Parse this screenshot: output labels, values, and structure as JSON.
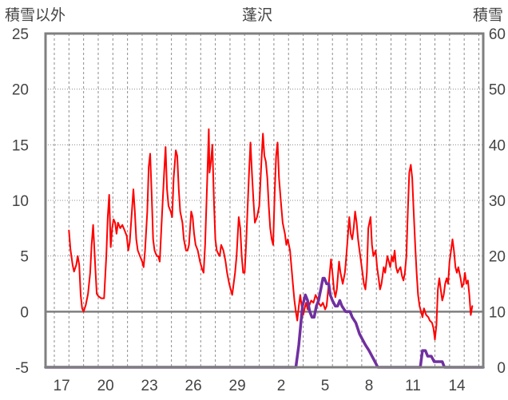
{
  "chart_data": {
    "type": "line",
    "title": "蓬沢",
    "left_axis_label": "積雪以外",
    "right_axis_label": "積雪",
    "ylim_left": [
      -5,
      25
    ],
    "ylim_right": [
      0,
      60
    ],
    "y_ticks_left": [
      "25",
      "20",
      "15",
      "10",
      "5",
      "0",
      "-5"
    ],
    "y_ticks_right": [
      "60",
      "50",
      "40",
      "30",
      "20",
      "10",
      "0"
    ],
    "x_tick_labels": [
      "17",
      "20",
      "23",
      "26",
      "29",
      "2",
      "5",
      "8",
      "11",
      "14"
    ],
    "x_tick_positions": [
      0.5,
      3.5,
      6.5,
      9.5,
      12.5,
      15.5,
      18.5,
      21.5,
      24.5,
      27.5
    ],
    "xlim": [
      -0.6,
      29.3
    ],
    "grid": "vertical dashed per day, horizontal dotted at major ticks",
    "colors": {
      "temperature": "#ff0000",
      "snow_depth": "#7030a0",
      "zero_line": "#7f7f7f"
    },
    "series": [
      {
        "axis": "left",
        "color": "#ff0000",
        "points": [
          [
            1.0,
            7.3
          ],
          [
            1.1,
            5.6
          ],
          [
            1.25,
            4.2
          ],
          [
            1.35,
            3.6
          ],
          [
            1.5,
            4.2
          ],
          [
            1.6,
            5.0
          ],
          [
            1.7,
            4.2
          ],
          [
            1.8,
            1.5
          ],
          [
            1.9,
            0.3
          ],
          [
            2.0,
            0.0
          ],
          [
            2.15,
            0.6
          ],
          [
            2.3,
            1.6
          ],
          [
            2.45,
            3.5
          ],
          [
            2.55,
            6.0
          ],
          [
            2.65,
            7.8
          ],
          [
            2.8,
            4.0
          ],
          [
            2.9,
            1.6
          ],
          [
            3.0,
            1.4
          ],
          [
            3.2,
            1.2
          ],
          [
            3.4,
            1.2
          ],
          [
            3.55,
            5.0
          ],
          [
            3.65,
            8.5
          ],
          [
            3.75,
            10.5
          ],
          [
            3.85,
            5.8
          ],
          [
            3.95,
            7.5
          ],
          [
            4.05,
            8.3
          ],
          [
            4.15,
            8.0
          ],
          [
            4.25,
            7.0
          ],
          [
            4.35,
            8.0
          ],
          [
            4.5,
            7.5
          ],
          [
            4.65,
            7.8
          ],
          [
            4.8,
            7.3
          ],
          [
            4.95,
            6.8
          ],
          [
            5.05,
            5.5
          ],
          [
            5.15,
            6.2
          ],
          [
            5.3,
            9.0
          ],
          [
            5.4,
            11.0
          ],
          [
            5.5,
            9.0
          ],
          [
            5.6,
            6.5
          ],
          [
            5.7,
            5.5
          ],
          [
            5.85,
            5.0
          ],
          [
            6.0,
            4.5
          ],
          [
            6.1,
            4.0
          ],
          [
            6.2,
            5.5
          ],
          [
            6.35,
            9.0
          ],
          [
            6.45,
            13.0
          ],
          [
            6.55,
            14.2
          ],
          [
            6.65,
            10.5
          ],
          [
            6.75,
            6.5
          ],
          [
            6.85,
            5.5
          ],
          [
            7.0,
            5.0
          ],
          [
            7.1,
            5.0
          ],
          [
            7.2,
            4.5
          ],
          [
            7.35,
            8.5
          ],
          [
            7.5,
            12.5
          ],
          [
            7.6,
            14.8
          ],
          [
            7.7,
            11.0
          ],
          [
            7.8,
            9.5
          ],
          [
            7.95,
            9.0
          ],
          [
            8.05,
            8.5
          ],
          [
            8.15,
            12.0
          ],
          [
            8.3,
            14.5
          ],
          [
            8.4,
            14.0
          ],
          [
            8.5,
            11.0
          ],
          [
            8.6,
            9.0
          ],
          [
            8.75,
            8.0
          ],
          [
            8.85,
            6.5
          ],
          [
            9.0,
            5.5
          ],
          [
            9.1,
            5.5
          ],
          [
            9.2,
            6.0
          ],
          [
            9.35,
            9.0
          ],
          [
            9.45,
            8.5
          ],
          [
            9.55,
            7.0
          ],
          [
            9.65,
            6.0
          ],
          [
            9.8,
            5.5
          ],
          [
            9.95,
            4.5
          ],
          [
            10.1,
            3.8
          ],
          [
            10.2,
            3.5
          ],
          [
            10.3,
            6.0
          ],
          [
            10.45,
            12.0
          ],
          [
            10.55,
            16.4
          ],
          [
            10.6,
            12.5
          ],
          [
            10.7,
            13.5
          ],
          [
            10.8,
            15.0
          ],
          [
            10.9,
            10.0
          ],
          [
            11.0,
            6.5
          ],
          [
            11.1,
            5.5
          ],
          [
            11.2,
            5.2
          ],
          [
            11.3,
            5.0
          ],
          [
            11.4,
            6.0
          ],
          [
            11.55,
            5.5
          ],
          [
            11.7,
            4.5
          ],
          [
            11.8,
            3.5
          ],
          [
            11.95,
            2.5
          ],
          [
            12.05,
            2.0
          ],
          [
            12.15,
            1.5
          ],
          [
            12.25,
            2.5
          ],
          [
            12.35,
            3.5
          ],
          [
            12.45,
            5.0
          ],
          [
            12.6,
            8.5
          ],
          [
            12.7,
            7.5
          ],
          [
            12.8,
            5.0
          ],
          [
            12.9,
            3.5
          ],
          [
            13.0,
            3.5
          ],
          [
            13.1,
            6.0
          ],
          [
            13.3,
            12.5
          ],
          [
            13.4,
            15.2
          ],
          [
            13.5,
            12.5
          ],
          [
            13.6,
            10.0
          ],
          [
            13.7,
            8.0
          ],
          [
            13.85,
            8.5
          ],
          [
            14.0,
            9.5
          ],
          [
            14.15,
            13.5
          ],
          [
            14.25,
            16.0
          ],
          [
            14.35,
            14.0
          ],
          [
            14.45,
            13.5
          ],
          [
            14.55,
            12.0
          ],
          [
            14.65,
            9.5
          ],
          [
            14.75,
            7.5
          ],
          [
            14.85,
            6.5
          ],
          [
            14.95,
            6.0
          ],
          [
            15.05,
            10.5
          ],
          [
            15.15,
            14.0
          ],
          [
            15.25,
            15.2
          ],
          [
            15.35,
            12.0
          ],
          [
            15.5,
            9.5
          ],
          [
            15.6,
            8.0
          ],
          [
            15.75,
            7.0
          ],
          [
            15.85,
            6.0
          ],
          [
            15.95,
            6.5
          ],
          [
            16.1,
            5.5
          ],
          [
            16.2,
            4.0
          ],
          [
            16.3,
            2.5
          ],
          [
            16.4,
            1.0
          ],
          [
            16.5,
            0.0
          ],
          [
            16.6,
            -0.8
          ],
          [
            16.7,
            0.5
          ],
          [
            16.8,
            1.5
          ],
          [
            16.9,
            0.5
          ],
          [
            17.0,
            -0.3
          ],
          [
            17.1,
            0.3
          ],
          [
            17.2,
            0.8
          ],
          [
            17.3,
            0.2
          ],
          [
            17.4,
            0.5
          ],
          [
            17.55,
            1.0
          ],
          [
            17.7,
            0.8
          ],
          [
            17.85,
            1.5
          ],
          [
            17.95,
            1.2
          ],
          [
            18.05,
            0.8
          ],
          [
            18.2,
            0.5
          ],
          [
            18.35,
            0.8
          ],
          [
            18.5,
            0.2
          ],
          [
            18.6,
            0.5
          ],
          [
            18.75,
            2.5
          ],
          [
            18.9,
            4.7
          ],
          [
            19.0,
            3.5
          ],
          [
            19.1,
            2.0
          ],
          [
            19.2,
            1.3
          ],
          [
            19.3,
            2.0
          ],
          [
            19.45,
            4.5
          ],
          [
            19.55,
            3.5
          ],
          [
            19.7,
            2.5
          ],
          [
            19.85,
            3.5
          ],
          [
            19.95,
            5.0
          ],
          [
            20.05,
            6.8
          ],
          [
            20.15,
            8.5
          ],
          [
            20.25,
            7.0
          ],
          [
            20.35,
            6.5
          ],
          [
            20.45,
            7.5
          ],
          [
            20.55,
            9.0
          ],
          [
            20.65,
            8.0
          ],
          [
            20.75,
            6.5
          ],
          [
            20.85,
            5.5
          ],
          [
            20.95,
            4.5
          ],
          [
            21.05,
            3.5
          ],
          [
            21.15,
            2.5
          ],
          [
            21.25,
            2.0
          ],
          [
            21.35,
            3.5
          ],
          [
            21.45,
            7.5
          ],
          [
            21.6,
            8.5
          ],
          [
            21.7,
            6.0
          ],
          [
            21.8,
            5.0
          ],
          [
            21.95,
            5.5
          ],
          [
            22.05,
            4.0
          ],
          [
            22.15,
            3.0
          ],
          [
            22.25,
            2.0
          ],
          [
            22.35,
            2.5
          ],
          [
            22.5,
            4.0
          ],
          [
            22.6,
            3.5
          ],
          [
            22.75,
            5.0
          ],
          [
            22.85,
            4.5
          ],
          [
            22.95,
            4.0
          ],
          [
            23.05,
            5.0
          ],
          [
            23.15,
            4.5
          ],
          [
            23.25,
            5.5
          ],
          [
            23.35,
            4.0
          ],
          [
            23.45,
            3.5
          ],
          [
            23.55,
            3.8
          ],
          [
            23.65,
            4.0
          ],
          [
            23.75,
            3.2
          ],
          [
            23.85,
            2.8
          ],
          [
            23.95,
            3.5
          ],
          [
            24.05,
            5.0
          ],
          [
            24.15,
            9.0
          ],
          [
            24.25,
            12.5
          ],
          [
            24.35,
            13.2
          ],
          [
            24.45,
            12.0
          ],
          [
            24.55,
            9.0
          ],
          [
            24.65,
            6.0
          ],
          [
            24.75,
            3.5
          ],
          [
            24.85,
            1.5
          ],
          [
            24.95,
            0.5
          ],
          [
            25.05,
            0.0
          ],
          [
            25.15,
            -0.5
          ],
          [
            25.25,
            0.3
          ],
          [
            25.4,
            -0.3
          ],
          [
            25.55,
            -0.5
          ],
          [
            25.65,
            -0.8
          ],
          [
            25.8,
            -1.0
          ],
          [
            25.9,
            -1.5
          ],
          [
            26.0,
            -2.5
          ],
          [
            26.1,
            -1.2
          ],
          [
            26.2,
            2.0
          ],
          [
            26.3,
            3.0
          ],
          [
            26.4,
            2.0
          ],
          [
            26.5,
            1.0
          ],
          [
            26.6,
            1.5
          ],
          [
            26.7,
            2.5
          ],
          [
            26.8,
            3.0
          ],
          [
            26.9,
            2.5
          ],
          [
            27.0,
            4.5
          ],
          [
            27.1,
            5.5
          ],
          [
            27.2,
            6.5
          ],
          [
            27.3,
            5.5
          ],
          [
            27.4,
            4.0
          ],
          [
            27.5,
            3.5
          ],
          [
            27.6,
            4.0
          ],
          [
            27.75,
            3.0
          ],
          [
            27.85,
            2.2
          ],
          [
            27.95,
            2.5
          ],
          [
            28.05,
            3.5
          ],
          [
            28.15,
            2.5
          ],
          [
            28.25,
            2.8
          ],
          [
            28.35,
            1.5
          ],
          [
            28.45,
            -0.3
          ],
          [
            28.55,
            0.5
          ]
        ]
      },
      {
        "axis": "right",
        "color": "#7030a0",
        "points": [
          [
            -0.6,
            0
          ],
          [
            16.5,
            0
          ],
          [
            16.7,
            4
          ],
          [
            16.95,
            11
          ],
          [
            17.15,
            13
          ],
          [
            17.3,
            12
          ],
          [
            17.45,
            10
          ],
          [
            17.6,
            9
          ],
          [
            17.75,
            9
          ],
          [
            17.9,
            11
          ],
          [
            18.05,
            12
          ],
          [
            18.2,
            14
          ],
          [
            18.35,
            16
          ],
          [
            18.45,
            16
          ],
          [
            18.6,
            15
          ],
          [
            18.75,
            15
          ],
          [
            18.85,
            13
          ],
          [
            19.0,
            12
          ],
          [
            19.2,
            11
          ],
          [
            19.35,
            11
          ],
          [
            19.5,
            12
          ],
          [
            19.65,
            11
          ],
          [
            19.9,
            10
          ],
          [
            20.2,
            10
          ],
          [
            20.35,
            9
          ],
          [
            20.6,
            8
          ],
          [
            20.85,
            6
          ],
          [
            21.05,
            5
          ],
          [
            21.25,
            4
          ],
          [
            21.5,
            3
          ],
          [
            21.7,
            2
          ],
          [
            21.9,
            1
          ],
          [
            22.1,
            0
          ],
          [
            22.3,
            0
          ],
          [
            25.0,
            0
          ],
          [
            25.15,
            3
          ],
          [
            25.35,
            3
          ],
          [
            25.5,
            2
          ],
          [
            25.75,
            2
          ],
          [
            25.95,
            1
          ],
          [
            26.2,
            1
          ],
          [
            26.5,
            1
          ],
          [
            26.65,
            0
          ],
          [
            29.3,
            0
          ]
        ]
      }
    ]
  }
}
